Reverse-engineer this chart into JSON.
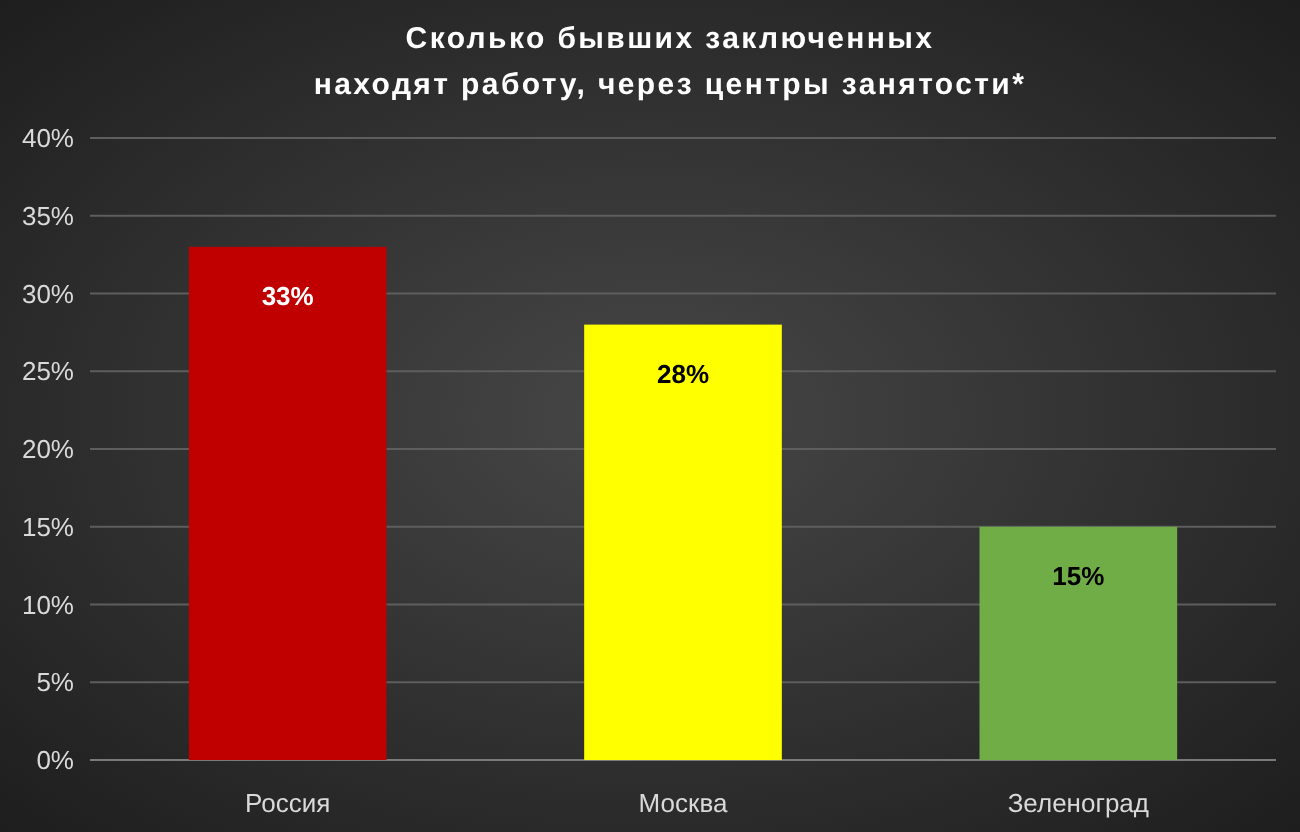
{
  "chart_data": {
    "type": "bar",
    "title": "Сколько бывших заключенных\nнаходят работу, через центры занятости*",
    "categories": [
      "Россия",
      "Москва",
      "Зеленоград"
    ],
    "values": [
      33,
      28,
      15
    ],
    "colors": [
      "#c00000",
      "#ffff00",
      "#70ad47"
    ],
    "value_labels": [
      "33%",
      "28%",
      "15%"
    ],
    "ylim": [
      0,
      40
    ],
    "yticks": [
      {
        "value": 0,
        "label": "0%"
      },
      {
        "value": 5,
        "label": "5%"
      },
      {
        "value": 10,
        "label": "10%"
      },
      {
        "value": 15,
        "label": "15%"
      },
      {
        "value": 20,
        "label": "20%"
      },
      {
        "value": 25,
        "label": "25%"
      },
      {
        "value": 30,
        "label": "30%"
      },
      {
        "value": 35,
        "label": "35%"
      },
      {
        "value": 40,
        "label": "40%"
      }
    ],
    "grid": "y"
  }
}
